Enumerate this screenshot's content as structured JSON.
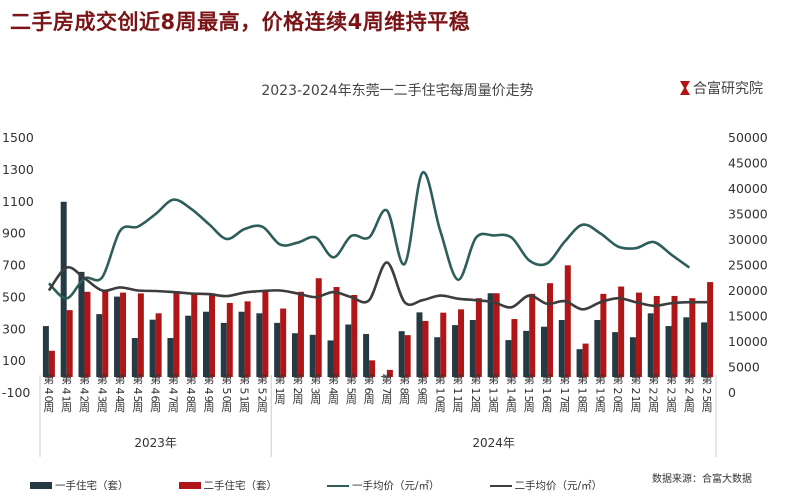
{
  "headline": "二手房成交创近8周最高，价格连续4周维持平稳",
  "brand": "合富研究院",
  "source": "数据来源：合富大数据",
  "colors": {
    "new_units": "#263a44",
    "resale_units": "#b01518",
    "new_price": "#2e5e5a",
    "resale_price": "#3d3d3d",
    "headline": "#7a1416"
  },
  "chart_data": {
    "type": "bar+line",
    "title": "2023-2024年东莞一二手住宅每周量价走势",
    "categories": [
      "第40周",
      "第41周",
      "第42周",
      "第43周",
      "第44周",
      "第45周",
      "第46周",
      "第47周",
      "第48周",
      "第49周",
      "第50周",
      "第51周",
      "第52周",
      "第1周",
      "第2周",
      "第3周",
      "第4周",
      "第5周",
      "第6周",
      "第7周",
      "第8周",
      "第9周",
      "第10周",
      "第11周",
      "第12周",
      "第13周",
      "第14周",
      "第15周",
      "第16周",
      "第17周",
      "第18周",
      "第19周",
      "第20周",
      "第21周",
      "第22周",
      "第23周",
      "第24周",
      "第25周"
    ],
    "year_groups": [
      {
        "label": "2023年",
        "count": 13
      },
      {
        "label": "2024年",
        "count": 25
      }
    ],
    "y_left": {
      "range": [
        -100,
        1500
      ],
      "ticks": [
        1500,
        1300,
        1100,
        900,
        700,
        500,
        300,
        100,
        -100
      ]
    },
    "y_right": {
      "range": [
        0,
        50000
      ],
      "ticks": [
        50000,
        45000,
        40000,
        35000,
        30000,
        25000,
        20000,
        15000,
        10000,
        5000,
        0
      ]
    },
    "grid": false,
    "legend_position": "bottom",
    "series": [
      {
        "name": "一手住宅（套）",
        "type": "bar",
        "axis": "left",
        "values": [
          320,
          1100,
          660,
          395,
          505,
          245,
          360,
          245,
          385,
          410,
          340,
          410,
          400,
          340,
          275,
          265,
          230,
          330,
          270,
          5,
          288,
          406,
          250,
          326,
          358,
          526,
          232,
          290,
          316,
          358,
          175,
          358,
          282,
          250,
          400,
          320,
          375,
          343
        ]
      },
      {
        "name": "二手住宅（套）",
        "type": "bar",
        "axis": "left",
        "values": [
          165,
          420,
          535,
          540,
          530,
          525,
          400,
          540,
          530,
          525,
          465,
          475,
          540,
          430,
          535,
          620,
          565,
          515,
          105,
          45,
          263,
          352,
          404,
          425,
          495,
          526,
          364,
          522,
          589,
          701,
          210,
          522,
          568,
          530,
          509,
          509,
          495,
          596
        ]
      },
      {
        "name": "一手均价（元/㎡）",
        "type": "line",
        "axis": "right",
        "values": [
          21500,
          18550,
          22460,
          22700,
          31800,
          32600,
          35100,
          37900,
          36100,
          33100,
          30200,
          32150,
          32600,
          29100,
          29500,
          30500,
          26600,
          30800,
          30500,
          35800,
          25300,
          43200,
          31800,
          22200,
          30400,
          30900,
          30500,
          26000,
          25400,
          29700,
          33000,
          31300,
          28700,
          28400,
          29600,
          27100,
          24600,
          null
        ]
      },
      {
        "name": "二手均价（元/㎡）",
        "type": "line",
        "axis": "right",
        "values": [
          20100,
          24600,
          22500,
          20100,
          20700,
          20100,
          20000,
          19800,
          19500,
          19400,
          19000,
          19700,
          20000,
          20100,
          19500,
          18800,
          19800,
          18800,
          18200,
          25600,
          17800,
          18200,
          19100,
          18500,
          18200,
          17800,
          16800,
          19100,
          17500,
          18000,
          16400,
          17800,
          18600,
          17800,
          17100,
          17600,
          17800,
          17800
        ]
      }
    ]
  }
}
